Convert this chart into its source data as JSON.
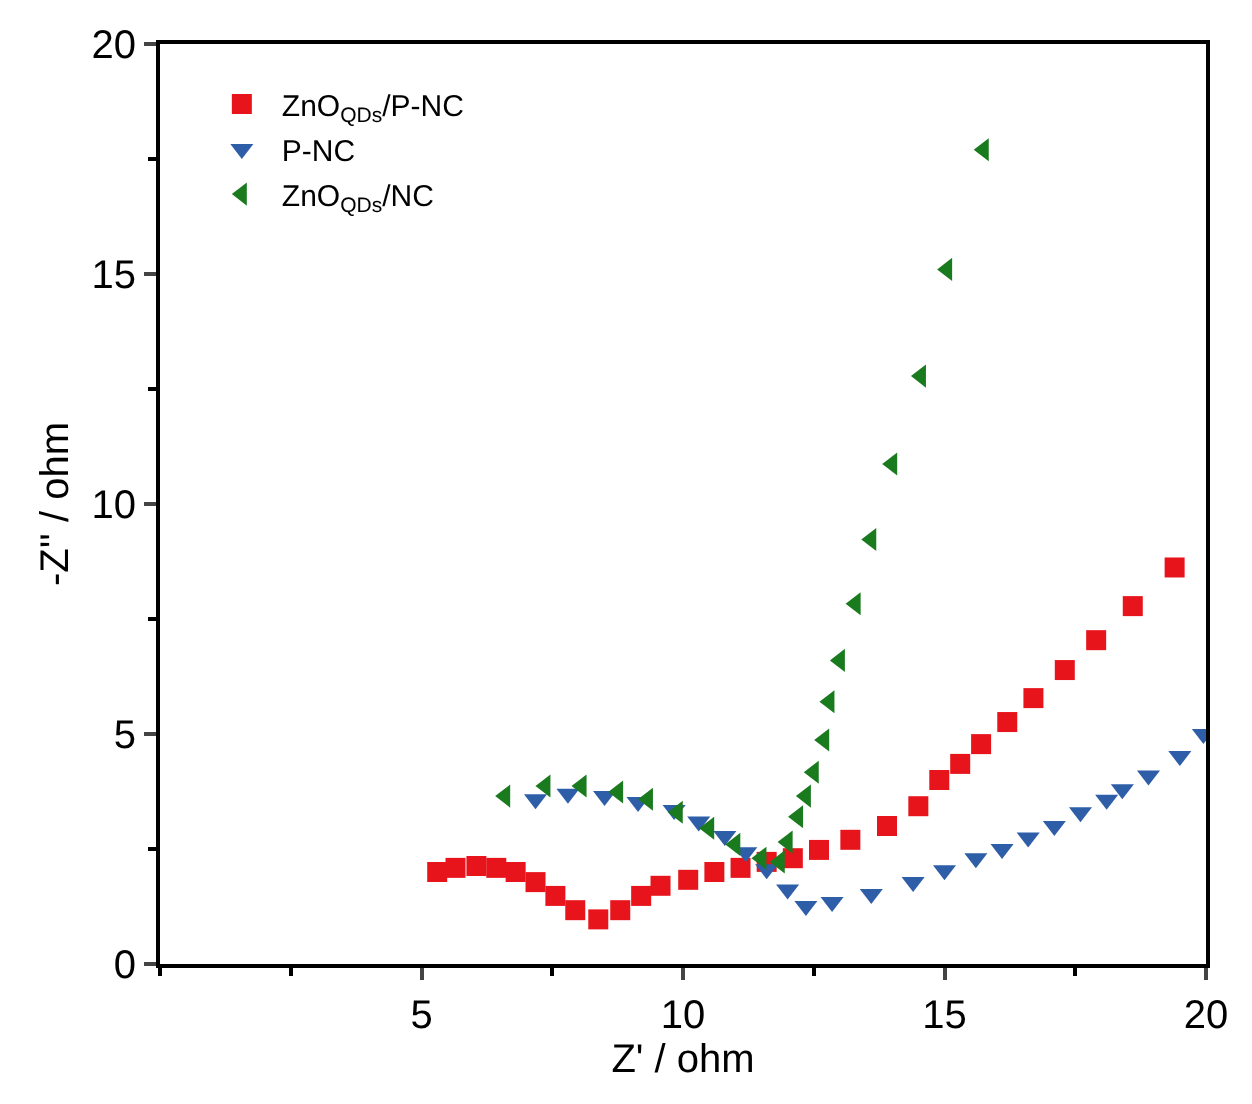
{
  "chart_data": {
    "type": "scatter",
    "xlabel": "Z' / ohm",
    "ylabel": "-Z'' / ohm",
    "xlim": [
      0,
      20
    ],
    "xticks": [
      5,
      10,
      15,
      20
    ],
    "ylim": [
      0,
      20
    ],
    "yticks": [
      0,
      5,
      10,
      15,
      20
    ],
    "legend": "top left",
    "series": [
      {
        "name": "ZnO$_{QDs}$/P-NC",
        "color": "#e8141c",
        "marker": "square",
        "x": [
          5.3,
          5.65,
          6.05,
          6.43,
          6.8,
          7.18,
          7.56,
          7.94,
          8.38,
          8.8,
          9.2,
          9.57,
          10.1,
          10.6,
          11.1,
          11.6,
          12.1,
          12.6,
          13.2,
          13.9,
          14.5,
          14.9,
          15.3,
          15.7,
          16.2,
          16.7,
          17.3,
          17.9,
          18.6,
          19.4
        ],
        "values": [
          2.0,
          2.09,
          2.13,
          2.09,
          2.0,
          1.78,
          1.48,
          1.17,
          0.97,
          1.17,
          1.48,
          1.7,
          1.83,
          2.0,
          2.09,
          2.22,
          2.3,
          2.48,
          2.7,
          3.0,
          3.43,
          4.0,
          4.35,
          4.78,
          5.26,
          5.78,
          6.39,
          7.04,
          7.78,
          8.62
        ]
      },
      {
        "name": "P-NC",
        "color": "#2e5ea8",
        "marker": "triangle-down",
        "x": [
          7.18,
          7.8,
          8.5,
          9.14,
          9.83,
          10.3,
          10.8,
          11.2,
          11.6,
          12.0,
          12.35,
          12.85,
          13.6,
          14.4,
          15.0,
          15.6,
          16.1,
          16.6,
          17.1,
          17.6,
          18.1,
          18.4,
          18.9,
          19.5,
          19.95
        ],
        "values": [
          3.58,
          3.7,
          3.65,
          3.52,
          3.35,
          3.1,
          2.78,
          2.43,
          2.06,
          1.62,
          1.26,
          1.35,
          1.52,
          1.78,
          2.04,
          2.3,
          2.5,
          2.75,
          3.0,
          3.3,
          3.57,
          3.8,
          4.1,
          4.52,
          5.0
        ]
      },
      {
        "name": "ZnO$_{QDs}$/NC",
        "color": "#1a7a1e",
        "marker": "triangle-left",
        "x": [
          6.6,
          7.37,
          8.06,
          8.76,
          9.33,
          9.9,
          10.5,
          11.0,
          11.5,
          11.85,
          12.0,
          12.2,
          12.35,
          12.5,
          12.7,
          12.8,
          13.0,
          13.3,
          13.6,
          14.0,
          14.55,
          15.05,
          15.75
        ],
        "values": [
          3.65,
          3.87,
          3.87,
          3.74,
          3.58,
          3.3,
          2.95,
          2.6,
          2.3,
          2.22,
          2.65,
          3.2,
          3.65,
          4.17,
          4.87,
          5.7,
          6.6,
          7.83,
          9.23,
          10.87,
          12.78,
          15.1,
          17.7
        ]
      }
    ]
  }
}
